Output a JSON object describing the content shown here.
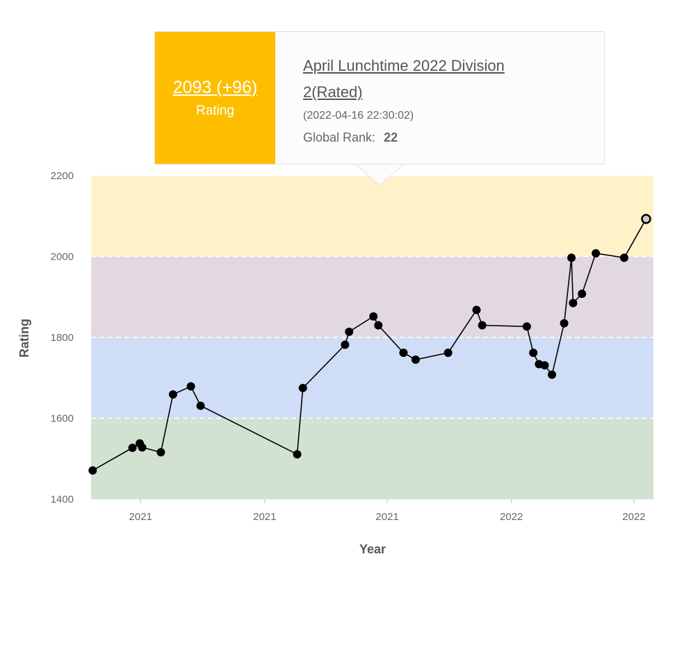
{
  "tooltip": {
    "rating_value": "2093 (+96)",
    "rating_label": "Rating",
    "contest_name": "April Lunchtime 2022 Division 2(Rated)",
    "datetime": "(2022-04-16 22:30:02)",
    "global_rank_label": "Global Rank:",
    "global_rank_value": "22"
  },
  "colors": {
    "band_yellow": "#fff2c9",
    "band_purple": "#e2d8e2",
    "band_blue": "#d0ddf6",
    "band_green": "#d1e3d0",
    "accent_yellow": "#fdbe00",
    "line": "#000000",
    "point": "#000000",
    "highlight_point": "#cccccc"
  },
  "chart_data": {
    "type": "line",
    "xlabel": "Year",
    "ylabel": "Rating",
    "ylim": [
      1400,
      2200
    ],
    "yticks": [
      1400,
      1600,
      1800,
      2000,
      2200
    ],
    "xlim": [
      "2020-06-01",
      "2022-04-25"
    ],
    "xticks": [
      {
        "date": "2020-08-01",
        "label": "2021"
      },
      {
        "date": "2021-01-01",
        "label": "2021"
      },
      {
        "date": "2021-06-01",
        "label": "2021"
      },
      {
        "date": "2021-11-01",
        "label": "2022"
      },
      {
        "date": "2022-04-01",
        "label": "2022"
      }
    ],
    "bands": [
      {
        "from": 2000,
        "to": 2200,
        "color": "#fff2c9"
      },
      {
        "from": 1800,
        "to": 2000,
        "color": "#e2d8e2"
      },
      {
        "from": 1600,
        "to": 1800,
        "color": "#d0ddf6"
      },
      {
        "from": 1400,
        "to": 1600,
        "color": "#d1e3d0"
      }
    ],
    "grid": "dashed horizontal lines at 1600, 1800, 2000, 2200",
    "highlighted_point": {
      "x": "2022-04-16",
      "y": 2093
    },
    "series": [
      {
        "points": [
          {
            "x": "2020-06-03",
            "y": 1471
          },
          {
            "x": "2020-07-22",
            "y": 1527
          },
          {
            "x": "2020-07-31",
            "y": 1538
          },
          {
            "x": "2020-08-03",
            "y": 1528
          },
          {
            "x": "2020-08-26",
            "y": 1516
          },
          {
            "x": "2020-09-10",
            "y": 1659
          },
          {
            "x": "2020-10-02",
            "y": 1679
          },
          {
            "x": "2020-10-14",
            "y": 1631
          },
          {
            "x": "2021-02-10",
            "y": 1511
          },
          {
            "x": "2021-02-17",
            "y": 1675
          },
          {
            "x": "2021-04-10",
            "y": 1782
          },
          {
            "x": "2021-04-15",
            "y": 1814
          },
          {
            "x": "2021-05-15",
            "y": 1852
          },
          {
            "x": "2021-05-21",
            "y": 1830
          },
          {
            "x": "2021-06-21",
            "y": 1762
          },
          {
            "x": "2021-07-06",
            "y": 1745
          },
          {
            "x": "2021-08-15",
            "y": 1762
          },
          {
            "x": "2021-09-19",
            "y": 1868
          },
          {
            "x": "2021-09-26",
            "y": 1830
          },
          {
            "x": "2021-11-20",
            "y": 1827
          },
          {
            "x": "2021-11-28",
            "y": 1762
          },
          {
            "x": "2021-12-05",
            "y": 1734
          },
          {
            "x": "2021-12-12",
            "y": 1731
          },
          {
            "x": "2021-12-21",
            "y": 1708
          },
          {
            "x": "2022-01-05",
            "y": 1835
          },
          {
            "x": "2022-01-14",
            "y": 1997
          },
          {
            "x": "2022-01-16",
            "y": 1885
          },
          {
            "x": "2022-01-27",
            "y": 1908
          },
          {
            "x": "2022-02-13",
            "y": 2008
          },
          {
            "x": "2022-03-20",
            "y": 1997
          },
          {
            "x": "2022-04-16",
            "y": 2093
          }
        ]
      }
    ]
  }
}
